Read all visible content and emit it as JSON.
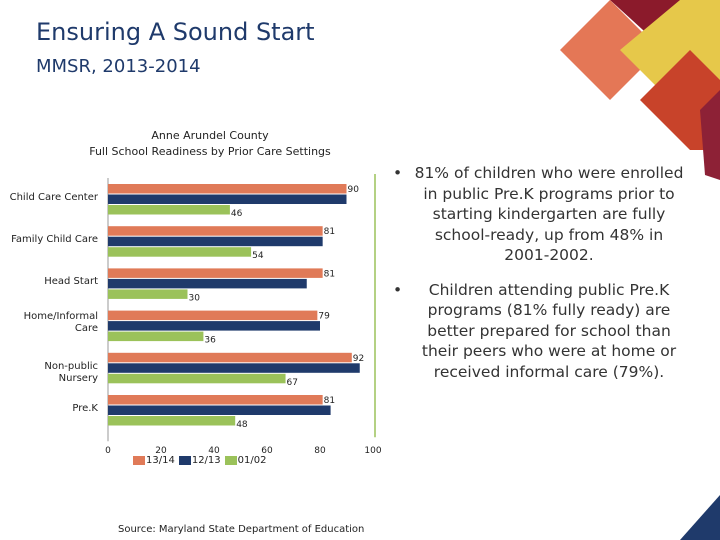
{
  "slide": {
    "title": "Ensuring A Sound Start",
    "subtitle": "MMSR, 2013-2014",
    "source": "Source: Maryland State Department of Education"
  },
  "colors": {
    "s1314": "#e07a58",
    "s1213": "#1f3a6b",
    "s0102": "#9bc25a",
    "decor": [
      "#8b1a2b",
      "#e47756",
      "#e6c84a",
      "#c8432a",
      "#8d2136",
      "#1f3a6b"
    ]
  },
  "bullets": [
    "81% of children who were enrolled in public Pre.K programs prior to starting kindergarten are fully school-ready, up from 48% in 2001-2002.",
    "Children attending public Pre.K programs (81% fully ready) are better prepared for school than their peers who were at home or received informal care (79%)."
  ],
  "chart_data": {
    "type": "bar",
    "orientation": "horizontal",
    "title": "Anne Arundel County",
    "subtitle": "Full School Readiness by Prior Care Settings",
    "categories": [
      "Child Care Center",
      "Family Child Care",
      "Head Start",
      "Home/Informal Care",
      "Non-public Nursery",
      "Pre.K"
    ],
    "series": [
      {
        "name": "13/14",
        "values": [
          90,
          81,
          81,
          79,
          92,
          81
        ]
      },
      {
        "name": "12/13",
        "values": [
          90,
          81,
          75,
          80,
          95,
          84
        ]
      },
      {
        "name": "01/02",
        "values": [
          46,
          54,
          30,
          36,
          67,
          48
        ]
      }
    ],
    "labeled_series": [
      "13/14",
      "01/02"
    ],
    "xlim": [
      0,
      100
    ],
    "xticks": [
      0,
      20,
      40,
      60,
      80,
      100
    ],
    "legend_position": "bottom"
  }
}
